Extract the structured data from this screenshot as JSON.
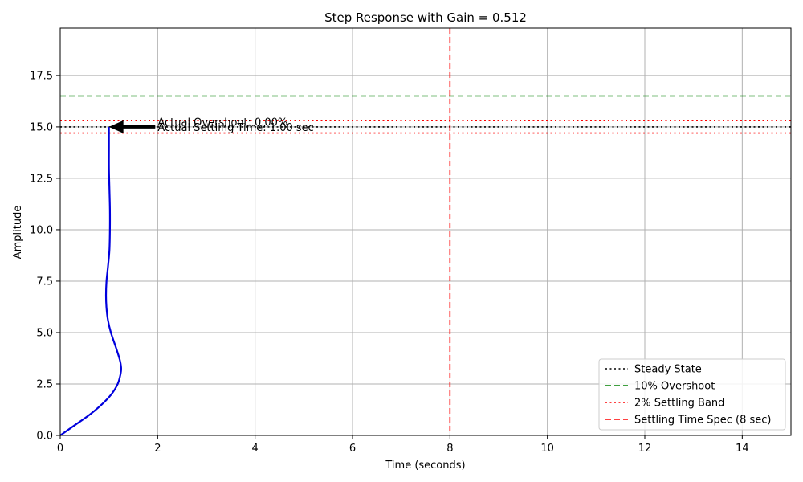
{
  "chart_data": {
    "type": "line",
    "title": "Step Response with Gain = 0.512",
    "xlabel": "Time (seconds)",
    "ylabel": "Amplitude",
    "xlim": [
      0,
      15
    ],
    "ylim": [
      0,
      19.8
    ],
    "xticks": [
      0,
      2,
      4,
      6,
      8,
      10,
      12,
      14
    ],
    "yticks": [
      0.0,
      2.5,
      5.0,
      7.5,
      10.0,
      12.5,
      15.0,
      17.5
    ],
    "xtick_labels": [
      "0",
      "2",
      "4",
      "6",
      "8",
      "10",
      "12",
      "14"
    ],
    "ytick_labels": [
      "0.0",
      "2.5",
      "5.0",
      "7.5",
      "10.0",
      "12.5",
      "15.0",
      "17.5"
    ],
    "grid": true,
    "legend_position": "lower-right",
    "response": {
      "color": "#0000dd",
      "x": [
        0.0,
        0.3,
        0.6,
        0.85,
        1.05,
        1.18,
        1.24,
        1.25,
        1.22,
        1.14,
        1.04,
        0.98,
        0.95,
        0.94,
        0.95,
        0.98,
        1.01,
        1.02,
        1.02,
        1.01,
        1.0,
        1.0,
        1.0
      ],
      "y": [
        0.0,
        0.5,
        1.0,
        1.5,
        2.0,
        2.5,
        3.0,
        3.3,
        3.7,
        4.3,
        5.0,
        5.6,
        6.2,
        6.8,
        7.5,
        8.2,
        9.0,
        10.0,
        11.0,
        12.0,
        13.0,
        14.0,
        15.0
      ]
    },
    "reference_lines": [
      {
        "name": "Steady State",
        "orientation": "h",
        "value": 15.0,
        "color": "#000000",
        "style": "dotted"
      },
      {
        "name": "10% Overshoot",
        "orientation": "h",
        "value": 16.5,
        "color": "#008000",
        "style": "dashed"
      },
      {
        "name": "2% Settling Band",
        "orientation": "h",
        "value": 15.3,
        "color": "#ff0000",
        "style": "dotted"
      },
      {
        "name": "",
        "orientation": "h",
        "value": 14.7,
        "color": "#ff0000",
        "style": "dotted"
      },
      {
        "name": "Settling Time Spec (8 sec)",
        "orientation": "v",
        "value": 8.0,
        "color": "#ff0000",
        "style": "dashed"
      }
    ],
    "annotations": [
      {
        "text": "Actual Overshoot: 0.00%",
        "x": 2.0,
        "y": 15.25
      },
      {
        "text": "Actual Settling Time: 1.00 sec",
        "x": 2.0,
        "y": 15.0
      }
    ],
    "arrow": {
      "from_x": 1.95,
      "from_y": 15.0,
      "to_x": 1.0,
      "to_y": 15.0,
      "color": "#000000"
    },
    "legend": [
      {
        "label": "Steady State",
        "color": "#000000",
        "style": "dotted"
      },
      {
        "label": "10% Overshoot",
        "color": "#008000",
        "style": "dashed"
      },
      {
        "label": "2% Settling Band",
        "color": "#ff0000",
        "style": "dotted"
      },
      {
        "label": "Settling Time Spec (8 sec)",
        "color": "#ff0000",
        "style": "dashed"
      }
    ]
  }
}
